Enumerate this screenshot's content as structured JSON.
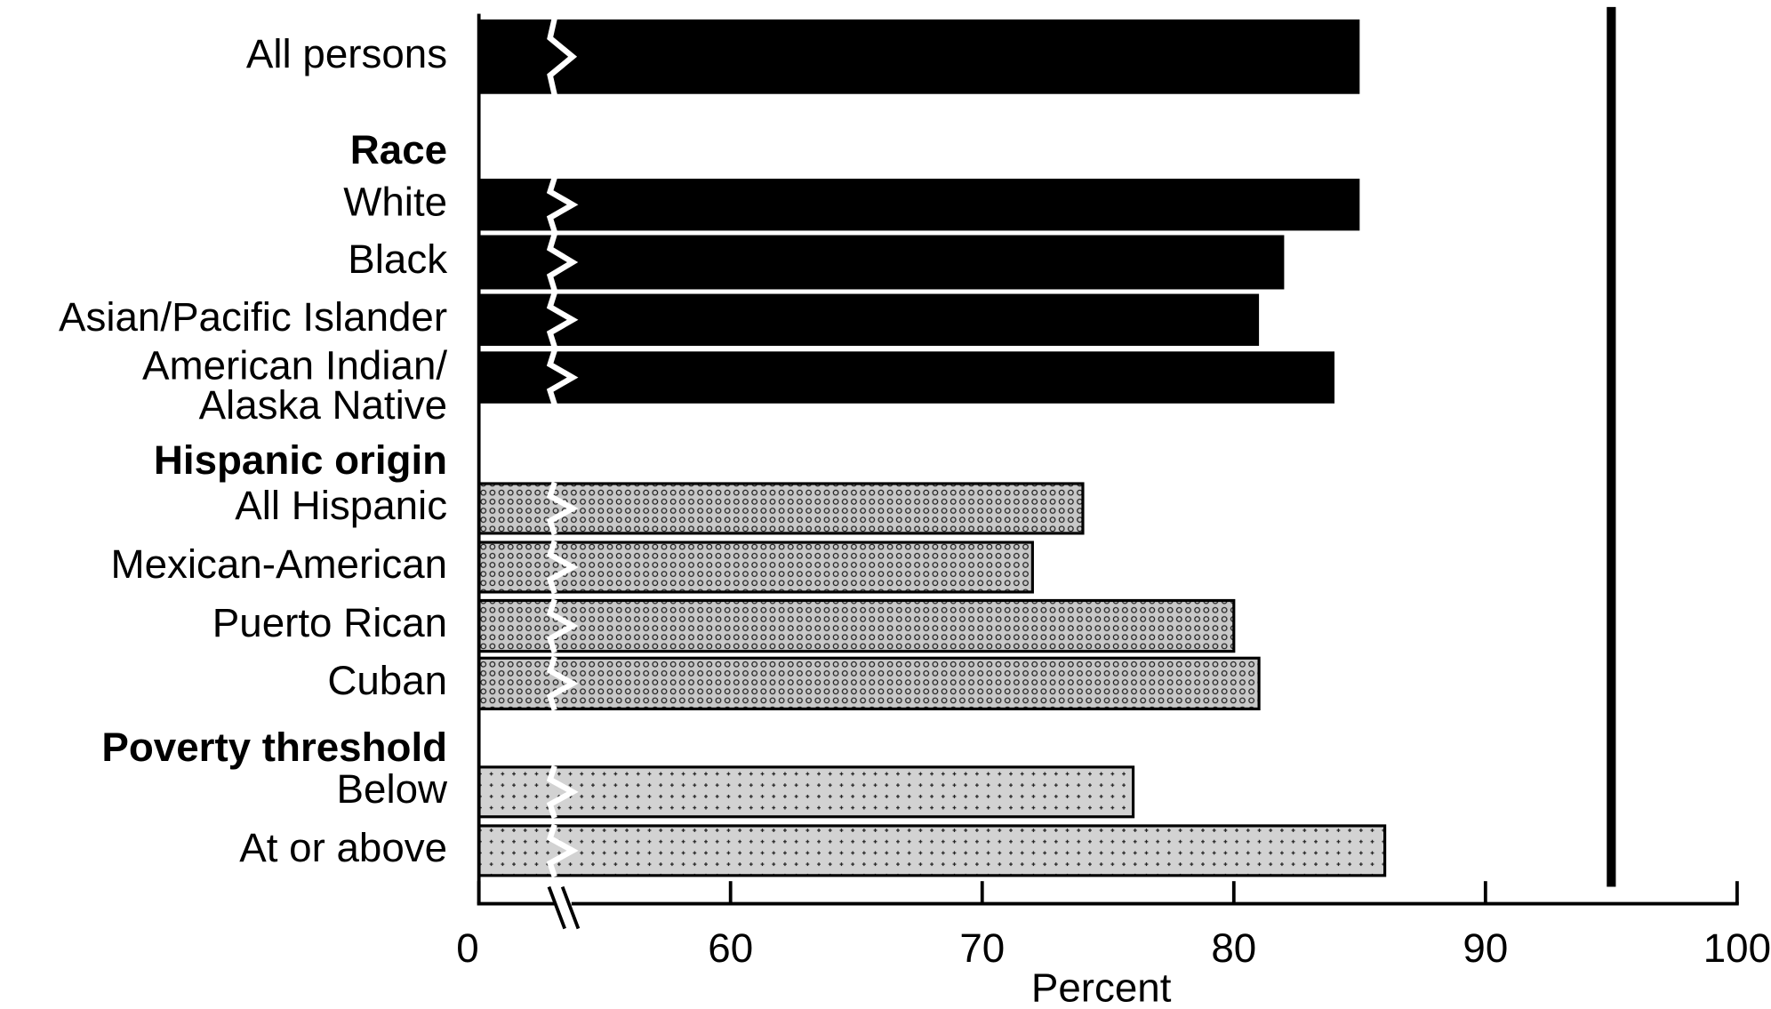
{
  "chart_data": {
    "type": "bar",
    "orientation": "horizontal",
    "x_label": "Percent",
    "categories": [
      "All persons",
      "Race",
      "White",
      "Black",
      "Asian/Pacific Islander",
      [
        "American Indian/",
        "Alaska Native"
      ],
      "Hispanic origin",
      "All Hispanic",
      "Mexican-American",
      "Puerto Rican",
      "Cuban",
      "Poverty threshold",
      "Below",
      "At or above"
    ],
    "values": [
      85,
      null,
      85,
      82,
      81,
      84,
      null,
      74,
      72,
      80,
      81,
      null,
      76,
      86
    ],
    "fills": [
      "black",
      null,
      "black",
      "black",
      "black",
      "black",
      null,
      "crosshatch",
      "crosshatch",
      "crosshatch",
      "crosshatch",
      null,
      "dots",
      "dots"
    ],
    "xlim": [
      0,
      100
    ],
    "axis_break": [
      0,
      50
    ],
    "xticks": [
      0,
      60,
      70,
      80,
      90,
      100
    ],
    "target": 95
  }
}
